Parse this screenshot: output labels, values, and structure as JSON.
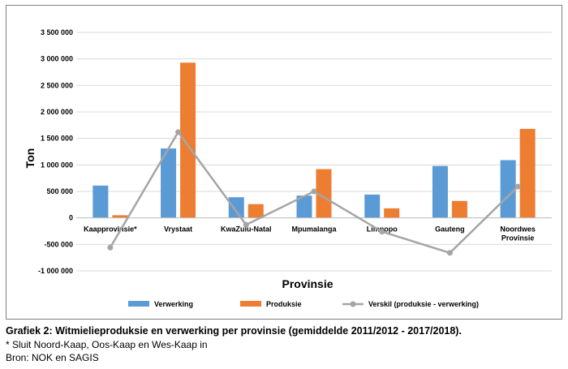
{
  "chart_data": {
    "type": "bar",
    "categories": [
      "Kaapprovinsie*",
      "Vrystaat",
      "KwaZulu-Natal",
      "Mpumalanga",
      "Limpopo",
      "Gauteng",
      [
        "Noordwes",
        "Provinsie"
      ]
    ],
    "series": [
      {
        "name": "Verwerking",
        "type": "bar",
        "color": "#5b9bd5",
        "values": [
          610000,
          1310000,
          390000,
          420000,
          440000,
          980000,
          1090000
        ]
      },
      {
        "name": "Produksie",
        "type": "bar",
        "color": "#ed7d31",
        "values": [
          50000,
          2930000,
          260000,
          920000,
          180000,
          320000,
          1680000
        ]
      },
      {
        "name": "Verskil (produksie - verwerking)",
        "type": "line",
        "color": "#a5a5a5",
        "values": [
          -560000,
          1620000,
          -130000,
          500000,
          -260000,
          -660000,
          590000
        ]
      }
    ],
    "xlabel": "Provinsie",
    "ylabel": "Ton",
    "ylim": [
      -1000000,
      3500000
    ],
    "yticks": [
      "-1 000 000",
      "-500 000",
      "0",
      "500 000",
      "1 000 000",
      "1 500 000",
      "2 000 000",
      "2 500 000",
      "3 000 000",
      "3 500 000"
    ],
    "ytick_values": [
      -1000000,
      -500000,
      0,
      500000,
      1000000,
      1500000,
      2000000,
      2500000,
      3000000,
      3500000
    ],
    "grid": true,
    "legend_position": "bottom"
  },
  "caption": {
    "title": "Grafiek 2: Witmielieproduksie en verwerking per provinsie (gemiddelde 2011/2012 - 2017/2018).",
    "note": "* Sluit Noord-Kaap, Oos-Kaap en Wes-Kaap in",
    "source": "Bron: NOK en SAGIS"
  }
}
